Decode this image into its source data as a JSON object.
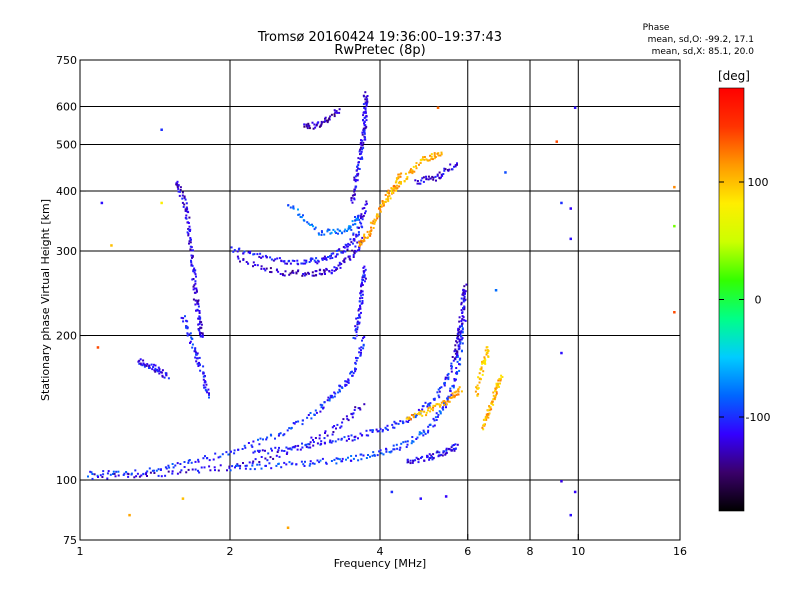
{
  "chart_data": {
    "type": "scatter",
    "title": "Tromsø 20160424 19:36:00–19:37:43",
    "subtitle": "RwPretec (8p)",
    "xlabel": "Frequency [MHz]",
    "ylabel": "Stationary phase Virtual Height [km]",
    "x_scale": "log",
    "y_scale": "log",
    "xlim": [
      1,
      16
    ],
    "ylim": [
      75,
      750
    ],
    "x_ticks": [
      1,
      2,
      4,
      6,
      8,
      10,
      16
    ],
    "y_ticks": [
      75,
      100,
      200,
      300,
      400,
      500,
      600,
      750
    ],
    "x_gridlines": [
      2,
      4,
      6,
      8,
      10
    ],
    "y_gridlines": [
      100,
      200,
      300,
      400,
      500,
      600
    ],
    "grid": true,
    "stats": {
      "heading": "Phase",
      "line1": "mean, sd,O: -99.2, 17.1",
      "line2": "mean, sd,X:  85.1, 20.0"
    },
    "colorbar": {
      "label": "[deg]",
      "range": [
        -180,
        180
      ],
      "ticks": [
        100,
        0,
        -100
      ],
      "colors": [
        "#000000",
        "#3a006a",
        "#3300ff",
        "#0066ff",
        "#00ccff",
        "#00ff88",
        "#33ff00",
        "#ccff00",
        "#ffee00",
        "#ff9900",
        "#ff3300",
        "#ff0000"
      ]
    },
    "traces": [
      {
        "x": [
          2.0,
          2.4,
          2.8,
          3.1,
          3.4,
          3.6,
          3.75
        ],
        "y": [
          305,
          290,
          285,
          290,
          305,
          330,
          380
        ],
        "phase": -110
      },
      {
        "x": [
          2.05,
          2.5,
          2.9,
          3.2,
          3.5,
          3.7
        ],
        "y": [
          290,
          272,
          270,
          275,
          295,
          320
        ],
        "phase": -125
      },
      {
        "x": [
          3.5,
          3.58,
          3.66,
          3.7,
          3.72,
          3.73
        ],
        "y": [
          380,
          430,
          490,
          540,
          590,
          640
        ],
        "phase": -115
      },
      {
        "x": [
          2.6,
          3.0,
          3.4,
          3.65
        ],
        "y": [
          380,
          330,
          330,
          360
        ],
        "phase": -80
      },
      {
        "x": [
          2.8,
          3.05,
          3.3
        ],
        "y": [
          545,
          555,
          595
        ],
        "phase": -130
      },
      {
        "x": [
          3.6,
          3.8,
          4.0,
          4.2,
          4.4
        ],
        "y": [
          310,
          330,
          370,
          400,
          440
        ],
        "phase": 110
      },
      {
        "x": [
          4.1,
          4.5,
          4.9,
          5.3
        ],
        "y": [
          390,
          430,
          470,
          480
        ],
        "phase": 105
      },
      {
        "x": [
          4.7,
          5.2,
          5.7
        ],
        "y": [
          420,
          430,
          460
        ],
        "phase": -120
      },
      {
        "x": [
          1.55,
          1.62,
          1.65,
          1.68,
          1.7,
          1.73,
          1.75
        ],
        "y": [
          420,
          380,
          330,
          280,
          240,
          215,
          200
        ],
        "phase": -120
      },
      {
        "x": [
          1.6,
          1.68,
          1.75,
          1.8
        ],
        "y": [
          220,
          190,
          170,
          150
        ],
        "phase": -105
      },
      {
        "x": [
          1.3,
          1.4,
          1.5
        ],
        "y": [
          178,
          172,
          165
        ],
        "phase": -115
      },
      {
        "x": [
          1.0,
          1.3,
          1.6,
          2.0,
          2.5,
          3.0,
          3.3,
          3.55,
          3.7
        ],
        "y": [
          103,
          104,
          108,
          115,
          125,
          140,
          155,
          170,
          200
        ],
        "phase": -100
      },
      {
        "x": [
          1.05,
          1.5,
          2.0,
          2.6,
          3.2,
          3.7
        ],
        "y": [
          102,
          104,
          107,
          115,
          127,
          145
        ],
        "phase": -118
      },
      {
        "x": [
          3.55,
          3.62,
          3.68,
          3.72
        ],
        "y": [
          200,
          225,
          255,
          280
        ],
        "phase": -110
      },
      {
        "x": [
          2.0,
          2.6,
          3.2,
          3.8,
          4.4,
          5.0,
          5.4,
          5.7,
          5.85
        ],
        "y": [
          106,
          108,
          110,
          113,
          118,
          128,
          145,
          170,
          210
        ],
        "phase": -95
      },
      {
        "x": [
          2.2,
          2.8,
          3.4,
          4.0,
          4.6,
          5.2,
          5.6,
          5.9
        ],
        "y": [
          114,
          118,
          122,
          128,
          135,
          150,
          175,
          220
        ],
        "phase": -105
      },
      {
        "x": [
          5.6,
          5.75,
          5.85,
          5.9
        ],
        "y": [
          180,
          205,
          235,
          255
        ],
        "phase": -120
      },
      {
        "x": [
          4.5,
          5.0,
          5.4,
          5.7
        ],
        "y": [
          110,
          112,
          115,
          118
        ],
        "phase": -112
      },
      {
        "x": [
          6.4,
          6.6,
          6.8,
          7.0
        ],
        "y": [
          130,
          140,
          155,
          165
        ],
        "phase": 105
      },
      {
        "x": [
          6.2,
          6.4,
          6.6
        ],
        "y": [
          150,
          175,
          190
        ],
        "phase": 95
      },
      {
        "x": [
          4.5,
          5.0,
          5.5,
          5.8
        ],
        "y": [
          135,
          140,
          148,
          155
        ],
        "phase": 108
      }
    ],
    "isolated_points": [
      {
        "x": 9.8,
        "y": 600,
        "phase": -110
      },
      {
        "x": 9.6,
        "y": 370,
        "phase": -115
      },
      {
        "x": 9.6,
        "y": 320,
        "phase": -110
      },
      {
        "x": 9.2,
        "y": 380,
        "phase": -100
      },
      {
        "x": 9.2,
        "y": 185,
        "phase": -110
      },
      {
        "x": 9.2,
        "y": 100,
        "phase": -120
      },
      {
        "x": 9.8,
        "y": 95,
        "phase": -115
      },
      {
        "x": 9.6,
        "y": 85,
        "phase": -110
      },
      {
        "x": 9.0,
        "y": 510,
        "phase": 140
      },
      {
        "x": 7.1,
        "y": 440,
        "phase": -90
      },
      {
        "x": 6.8,
        "y": 250,
        "phase": -80
      },
      {
        "x": 15.5,
        "y": 410,
        "phase": 120
      },
      {
        "x": 15.5,
        "y": 340,
        "phase": 30
      },
      {
        "x": 15.5,
        "y": 225,
        "phase": 140
      },
      {
        "x": 1.45,
        "y": 540,
        "phase": -100
      },
      {
        "x": 1.45,
        "y": 380,
        "phase": 80
      },
      {
        "x": 1.1,
        "y": 380,
        "phase": -110
      },
      {
        "x": 1.15,
        "y": 310,
        "phase": 100
      },
      {
        "x": 1.08,
        "y": 190,
        "phase": 140
      },
      {
        "x": 1.25,
        "y": 85,
        "phase": 110
      },
      {
        "x": 1.6,
        "y": 92,
        "phase": 100
      },
      {
        "x": 2.6,
        "y": 80,
        "phase": 110
      },
      {
        "x": 4.2,
        "y": 95,
        "phase": -100
      },
      {
        "x": 4.8,
        "y": 92,
        "phase": -110
      },
      {
        "x": 5.4,
        "y": 93,
        "phase": -115
      },
      {
        "x": 5.2,
        "y": 600,
        "phase": 130
      }
    ]
  }
}
